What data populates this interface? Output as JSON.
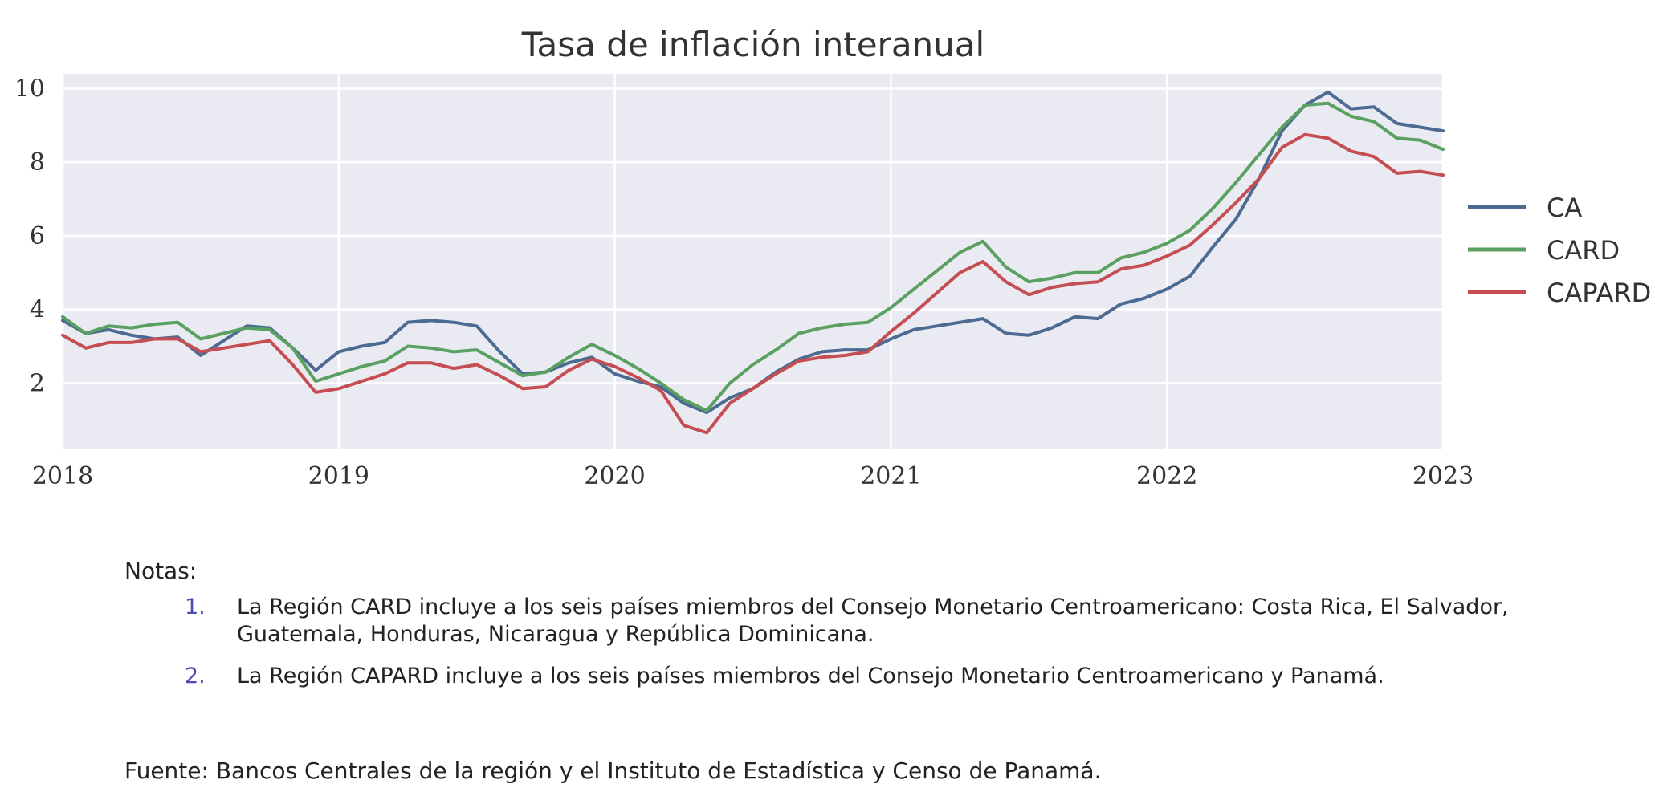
{
  "chart_data": {
    "type": "line",
    "title": "Tasa de inflación interanual",
    "xlabel": "",
    "ylabel": "",
    "x_ticks": [
      "2018",
      "2019",
      "2020",
      "2021",
      "2022",
      "2023"
    ],
    "y_ticks": [
      "2",
      "4",
      "6",
      "8",
      "10"
    ],
    "xlim": [
      "2018-01",
      "2023-01"
    ],
    "ylim": [
      0.2,
      10.4
    ],
    "grid": true,
    "legend_position": "right",
    "x": [
      "2018-01",
      "2018-02",
      "2018-03",
      "2018-04",
      "2018-05",
      "2018-06",
      "2018-07",
      "2018-08",
      "2018-09",
      "2018-10",
      "2018-11",
      "2018-12",
      "2019-01",
      "2019-02",
      "2019-03",
      "2019-04",
      "2019-05",
      "2019-06",
      "2019-07",
      "2019-08",
      "2019-09",
      "2019-10",
      "2019-11",
      "2019-12",
      "2020-01",
      "2020-02",
      "2020-03",
      "2020-04",
      "2020-05",
      "2020-06",
      "2020-07",
      "2020-08",
      "2020-09",
      "2020-10",
      "2020-11",
      "2020-12",
      "2021-01",
      "2021-02",
      "2021-03",
      "2021-04",
      "2021-05",
      "2021-06",
      "2021-07",
      "2021-08",
      "2021-09",
      "2021-10",
      "2021-11",
      "2021-12",
      "2022-01",
      "2022-02",
      "2022-03",
      "2022-04",
      "2022-05",
      "2022-06",
      "2022-07",
      "2022-08",
      "2022-09",
      "2022-10",
      "2022-11",
      "2022-12",
      "2023-01"
    ],
    "series": [
      {
        "name": "CA",
        "color": "#4c6a92",
        "values": [
          3.7,
          3.35,
          3.45,
          3.3,
          3.2,
          3.25,
          2.75,
          3.15,
          3.55,
          3.5,
          2.95,
          2.35,
          2.85,
          3.0,
          3.1,
          3.65,
          3.7,
          3.65,
          3.55,
          2.85,
          2.25,
          2.3,
          2.55,
          2.7,
          2.25,
          2.05,
          1.9,
          1.45,
          1.2,
          1.6,
          1.85,
          2.3,
          2.65,
          2.85,
          2.9,
          2.9,
          3.2,
          3.45,
          3.55,
          3.65,
          3.75,
          3.35,
          3.3,
          3.5,
          3.8,
          3.75,
          4.15,
          4.3,
          4.55,
          4.9,
          5.7,
          6.45,
          7.55,
          8.85,
          9.55,
          9.9,
          9.45,
          9.5,
          9.05,
          8.95,
          8.85
        ]
      },
      {
        "name": "CARD",
        "color": "#5aa060",
        "values": [
          3.8,
          3.35,
          3.55,
          3.5,
          3.6,
          3.65,
          3.2,
          3.35,
          3.5,
          3.45,
          2.95,
          2.05,
          2.25,
          2.45,
          2.6,
          3.0,
          2.95,
          2.85,
          2.9,
          2.55,
          2.2,
          2.3,
          2.7,
          3.05,
          2.75,
          2.4,
          2.0,
          1.55,
          1.25,
          2.0,
          2.5,
          2.9,
          3.35,
          3.5,
          3.6,
          3.65,
          4.05,
          4.55,
          5.05,
          5.55,
          5.85,
          5.15,
          4.75,
          4.85,
          5.0,
          5.0,
          5.4,
          5.55,
          5.8,
          6.15,
          6.75,
          7.45,
          8.2,
          8.95,
          9.55,
          9.6,
          9.25,
          9.1,
          8.65,
          8.6,
          8.35
        ]
      },
      {
        "name": "CAPARD",
        "color": "#c44e52",
        "values": [
          3.3,
          2.95,
          3.1,
          3.1,
          3.2,
          3.2,
          2.85,
          2.95,
          3.05,
          3.15,
          2.5,
          1.75,
          1.85,
          2.05,
          2.25,
          2.55,
          2.55,
          2.4,
          2.5,
          2.2,
          1.85,
          1.9,
          2.35,
          2.65,
          2.45,
          2.15,
          1.8,
          0.85,
          0.65,
          1.45,
          1.85,
          2.25,
          2.6,
          2.7,
          2.75,
          2.85,
          3.4,
          3.9,
          4.45,
          5.0,
          5.3,
          4.75,
          4.4,
          4.6,
          4.7,
          4.75,
          5.1,
          5.2,
          5.45,
          5.75,
          6.3,
          6.9,
          7.55,
          8.4,
          8.75,
          8.65,
          8.3,
          8.15,
          7.7,
          7.75,
          7.65
        ]
      }
    ]
  },
  "notes": {
    "title": "Notas:",
    "items": [
      {
        "number": "1.",
        "text": "La Región CARD incluye a los seis países miembros del Consejo Monetario Centroamericano: Costa Rica, El Salvador, Guatemala, Honduras, Nicaragua y República Dominicana."
      },
      {
        "number": "2.",
        "text": "La Región CAPARD incluye a los seis países miembros del Consejo Monetario Centroamericano y Panamá."
      }
    ]
  },
  "source": {
    "label": "Fuente:",
    "text": "Bancos Centrales de la región y el Instituto de Estadística y Censo de Panamá."
  },
  "colors": {
    "plot_background": "#eaeaf2",
    "grid": "#ffffff"
  }
}
